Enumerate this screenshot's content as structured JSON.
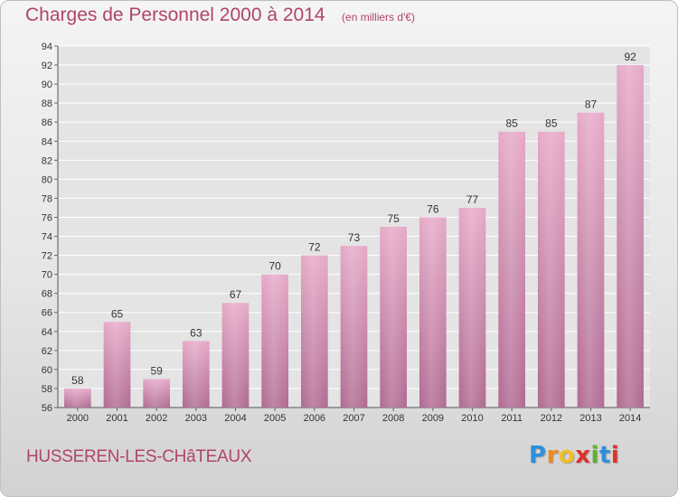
{
  "header": {
    "title": "Charges de Personnel 2000 à 2014",
    "subtitle": "(en milliers d'€)"
  },
  "footer": {
    "commune": "HUSSEREN-LES-CHâTEAUX",
    "logo": {
      "text": "Proxiti",
      "letters": [
        "P",
        "r",
        "o",
        "x",
        "i",
        "t",
        "i"
      ],
      "colors": [
        "#2f8fd8",
        "#f08a1c",
        "#f0c020",
        "#e0302a",
        "#60b030",
        "#2f8fd8",
        "#e0302a"
      ]
    }
  },
  "chart_data": {
    "type": "bar",
    "categories": [
      "2000",
      "2001",
      "2002",
      "2003",
      "2004",
      "2005",
      "2006",
      "2007",
      "2008",
      "2009",
      "2010",
      "2011",
      "2012",
      "2013",
      "2014"
    ],
    "values": [
      58,
      65,
      59,
      63,
      67,
      70,
      72,
      73,
      75,
      76,
      77,
      85,
      85,
      87,
      92
    ],
    "data_labels": [
      "58",
      "65",
      "59",
      "63",
      "67",
      "70",
      "72",
      "73",
      "75",
      "76",
      "77",
      "85",
      "85",
      "87",
      "92"
    ],
    "ylim": [
      56,
      94
    ],
    "yticks": [
      56,
      58,
      60,
      62,
      64,
      66,
      68,
      70,
      72,
      74,
      76,
      78,
      80,
      82,
      84,
      86,
      88,
      90,
      92,
      94
    ],
    "ytick_labels": [
      "56",
      "58",
      "60",
      "62",
      "64",
      "66",
      "68",
      "70",
      "72",
      "74",
      "76",
      "78",
      "80",
      "82",
      "84",
      "86",
      "88",
      "90",
      "92",
      "94"
    ],
    "title": "Charges de Personnel 2000 à 2014",
    "xlabel": "",
    "ylabel": "",
    "grid": true,
    "colors": {
      "bar_top": "#e6a9c8",
      "bar_bottom": "#b06a92",
      "grid": "#ffffff",
      "plot_bg": "#e4e4e4",
      "axis_text": "#333333"
    }
  }
}
